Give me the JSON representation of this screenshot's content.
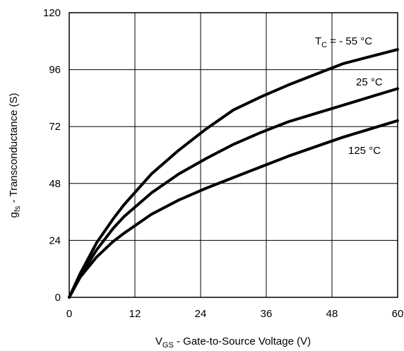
{
  "chart_data": {
    "type": "line",
    "title": "",
    "xlabel": {
      "main": "V",
      "sub": "GS",
      "rest": " - Gate-to-Source Voltage (V)"
    },
    "ylabel": {
      "main": "g",
      "sub": "fs",
      "rest": " - Transconductance (S)"
    },
    "xlim": [
      0,
      60
    ],
    "ylim": [
      0,
      120
    ],
    "xticks": [
      0,
      12,
      24,
      36,
      48,
      60
    ],
    "yticks": [
      0,
      24,
      48,
      72,
      96,
      120
    ],
    "grid": true,
    "series": [
      {
        "label": {
          "main": "T",
          "sub": "C",
          "rest": " = - 55 °C"
        },
        "x": [
          0,
          2,
          5,
          8,
          10,
          15,
          20,
          25,
          30,
          35,
          40,
          45,
          50,
          55,
          60
        ],
        "y": [
          0,
          10,
          23,
          33,
          39,
          52,
          62,
          71,
          79,
          84.5,
          89.5,
          94,
          98.5,
          101.5,
          104.5
        ]
      },
      {
        "label": {
          "main": "",
          "sub": "",
          "rest": "25 °C"
        },
        "x": [
          0,
          2,
          5,
          8,
          10,
          15,
          20,
          25,
          30,
          35,
          40,
          45,
          50,
          55,
          60
        ],
        "y": [
          0,
          9,
          20,
          29,
          34,
          44,
          52,
          58.5,
          64.5,
          69.5,
          74,
          77.5,
          81,
          84.5,
          88
        ]
      },
      {
        "label": {
          "main": "",
          "sub": "",
          "rest": "125 °C"
        },
        "x": [
          0,
          2,
          5,
          8,
          10,
          15,
          20,
          25,
          30,
          35,
          40,
          45,
          50,
          55,
          60
        ],
        "y": [
          0,
          8.5,
          17,
          23.5,
          27,
          35,
          41,
          46,
          50.5,
          55,
          59.5,
          63.5,
          67.5,
          71,
          74.5
        ]
      }
    ]
  }
}
